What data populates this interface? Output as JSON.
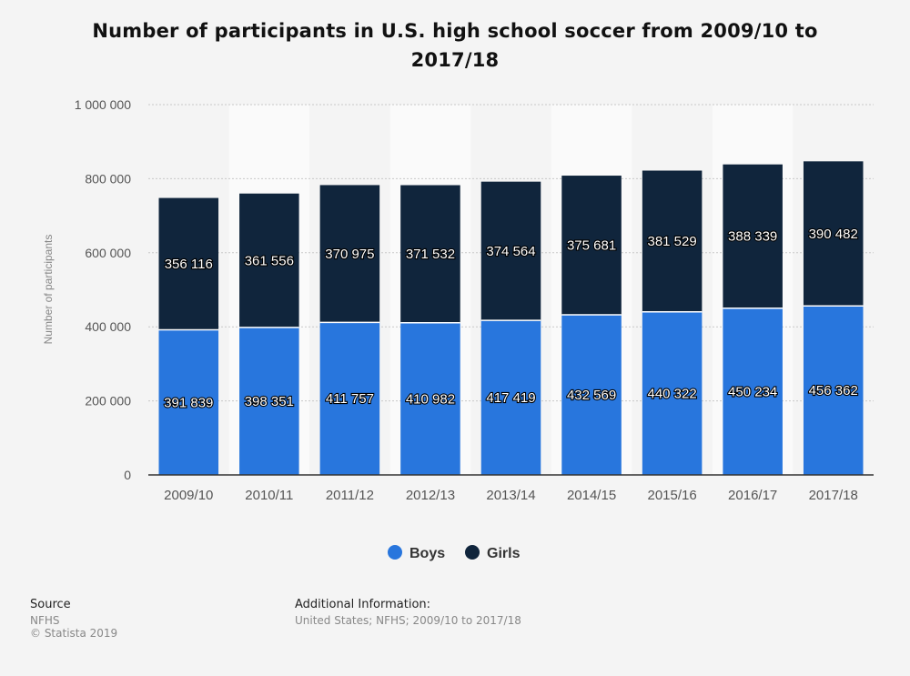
{
  "chart_data": {
    "type": "bar",
    "stacked": true,
    "title": "Number of participants in U.S. high school soccer from 2009/10 to 2017/18",
    "ylabel": "Number of participants",
    "xlabel": "",
    "ylim": [
      0,
      1000000
    ],
    "yticks": [
      0,
      200000,
      400000,
      600000,
      800000,
      1000000
    ],
    "ytick_labels": [
      "0",
      "200 000",
      "400 000",
      "600 000",
      "800 000",
      "1 000 000"
    ],
    "grid": true,
    "legend_position": "bottom",
    "categories": [
      "2009/10",
      "2010/11",
      "2011/12",
      "2012/13",
      "2013/14",
      "2014/15",
      "2015/16",
      "2016/17",
      "2017/18"
    ],
    "series": [
      {
        "name": "Boys",
        "color": "#2876dd",
        "values": [
          391839,
          398351,
          411757,
          410982,
          417419,
          432569,
          440322,
          450234,
          456362
        ],
        "labels": [
          "391 839",
          "398 351",
          "411 757",
          "410 982",
          "417 419",
          "432 569",
          "440 322",
          "450 234",
          "456 362"
        ]
      },
      {
        "name": "Girls",
        "color": "#10253c",
        "values": [
          356116,
          361556,
          370975,
          371532,
          374564,
          375681,
          381529,
          388339,
          390482
        ],
        "labels": [
          "356 116",
          "361 556",
          "370 975",
          "371 532",
          "374 564",
          "375 681",
          "381 529",
          "388 339",
          "390 482"
        ]
      }
    ]
  },
  "footer": {
    "source_label": "Source",
    "source_name": "NFHS",
    "copyright": "© Statista 2019",
    "additional_label": "Additional Information:",
    "additional_text": "United States; NFHS; 2009/10 to 2017/18"
  }
}
